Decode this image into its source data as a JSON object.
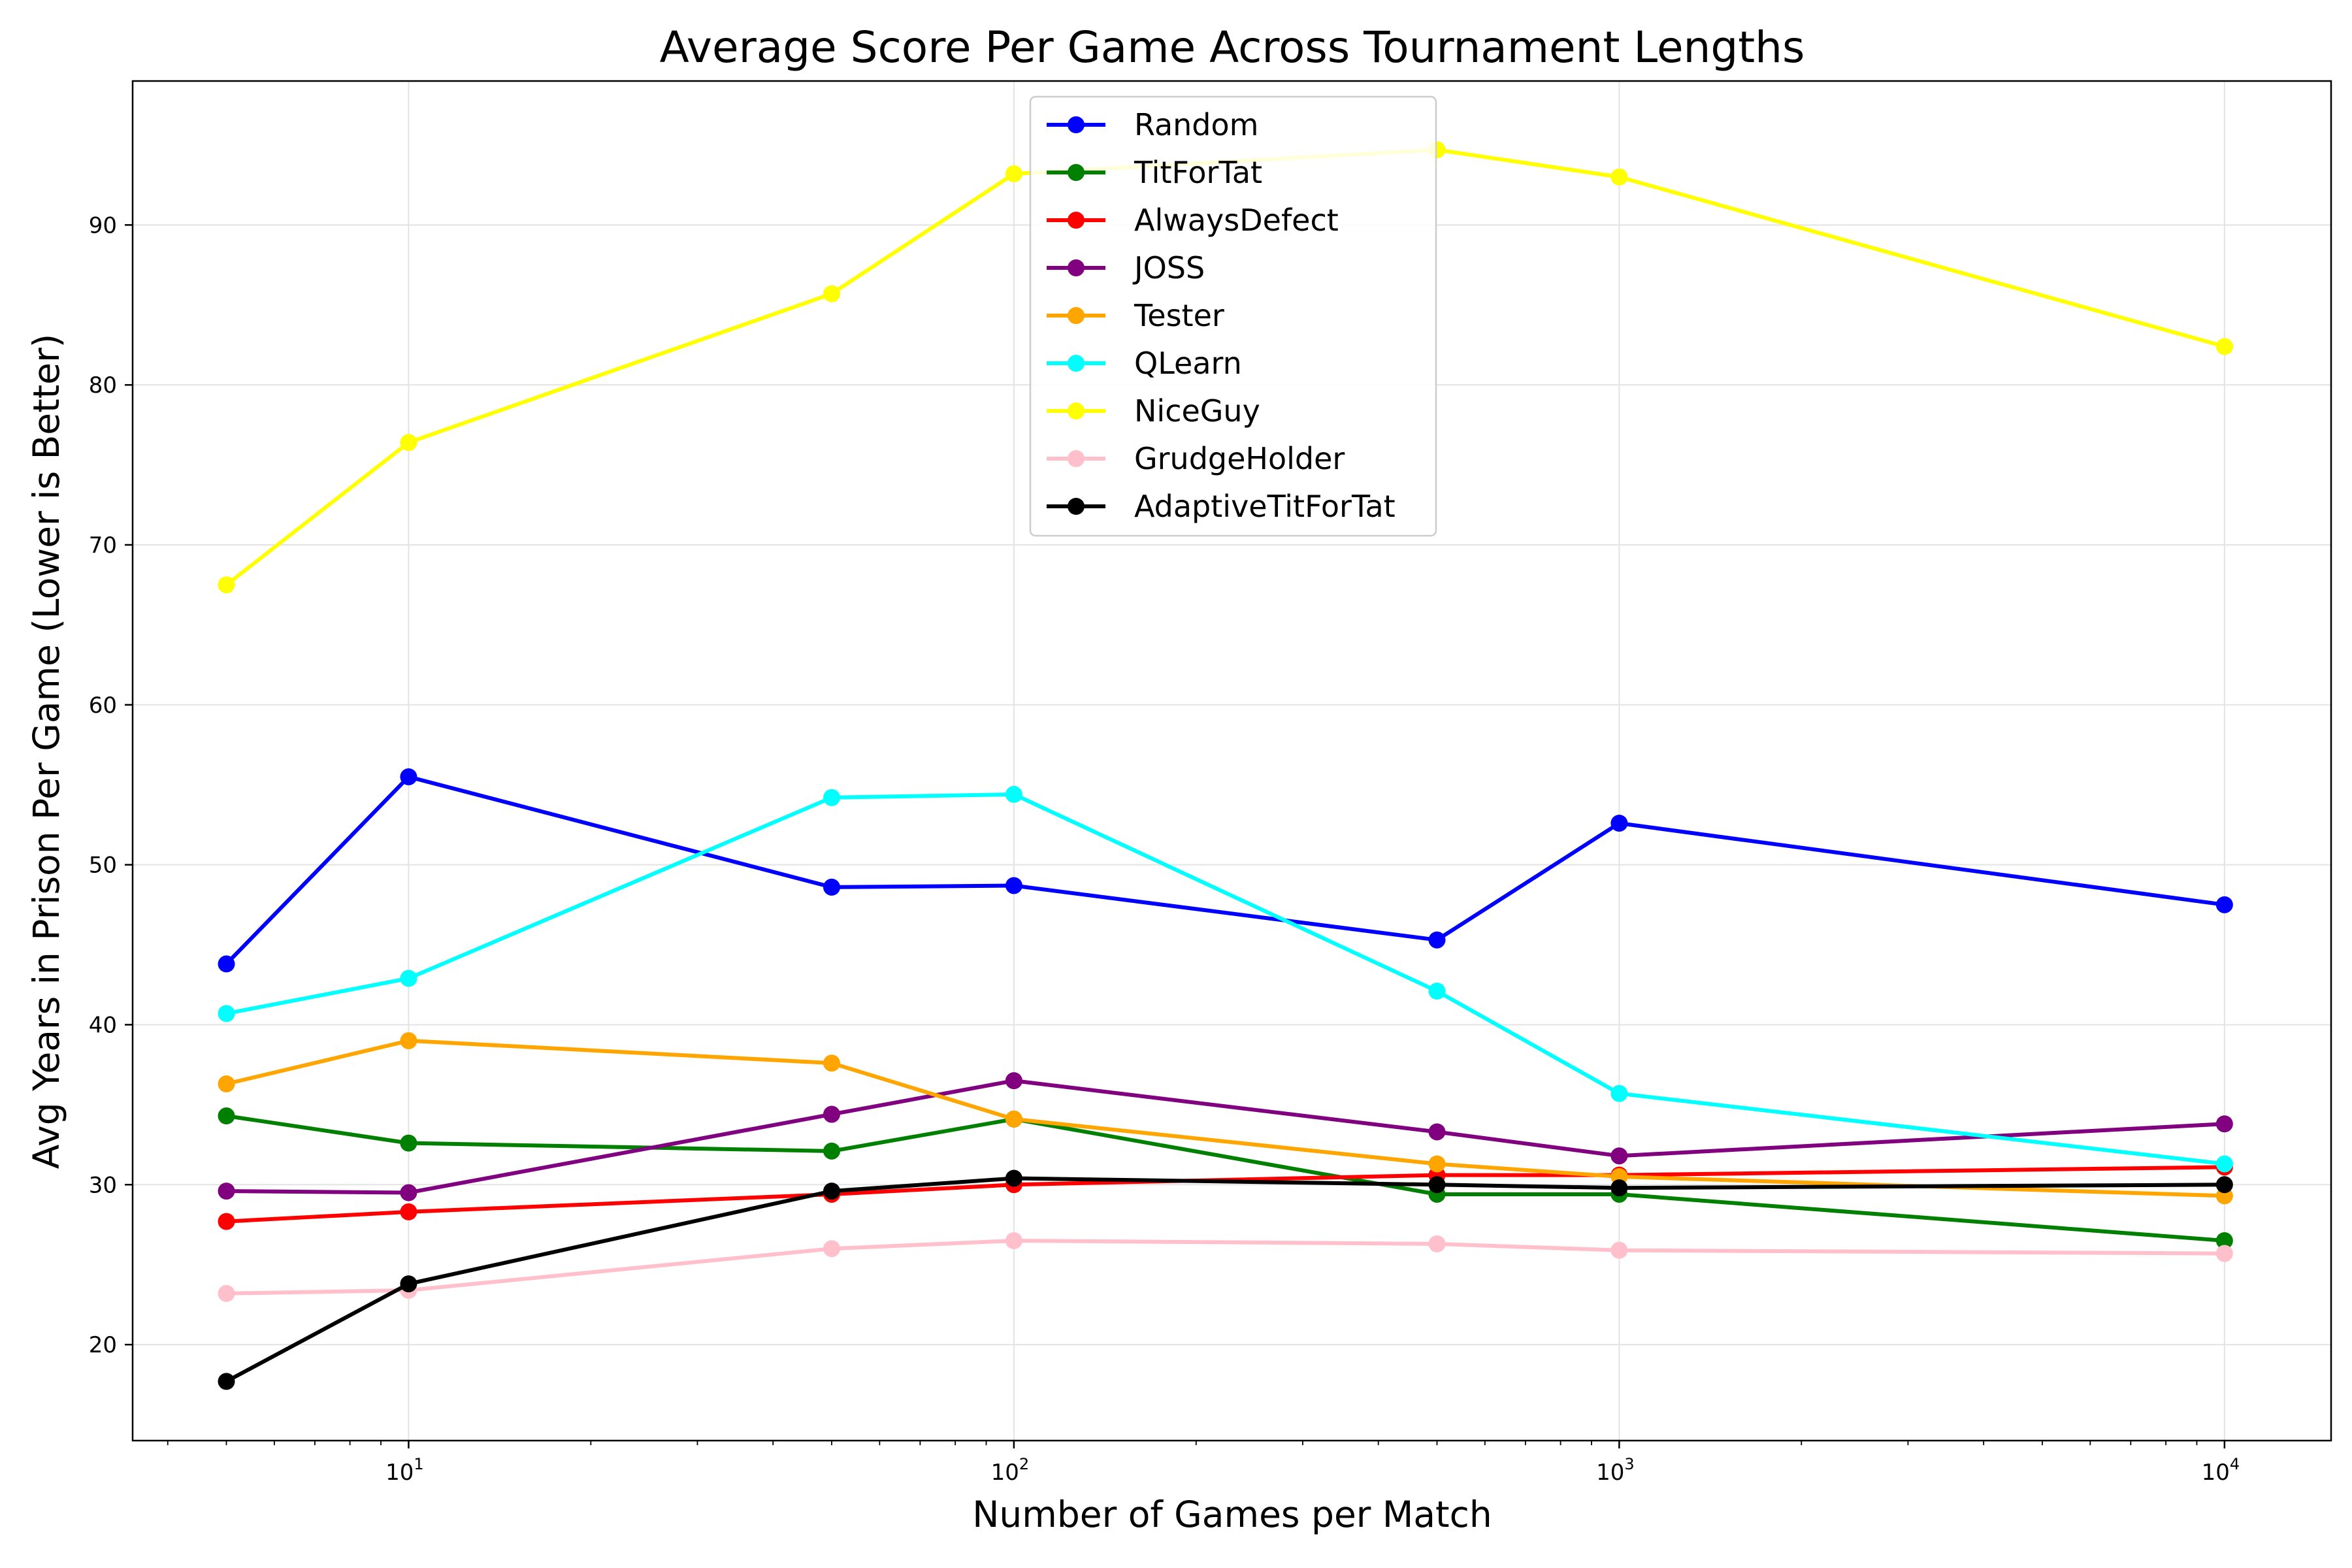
{
  "chart_data": {
    "type": "line",
    "title": "Average Score Per Game Across Tournament Lengths",
    "xlabel": "Number of Games per Match",
    "ylabel": "Avg Years in Prison Per Game (Lower is Better)",
    "x_scale": "log",
    "x": [
      5,
      10,
      50,
      100,
      500,
      1000,
      10000
    ],
    "xlim": [
      3.5,
      15000
    ],
    "ylim": [
      14,
      99
    ],
    "x_ticks": [
      {
        "value": 10,
        "base": "10",
        "exp": "1"
      },
      {
        "value": 100,
        "base": "10",
        "exp": "2"
      },
      {
        "value": 1000,
        "base": "10",
        "exp": "3"
      },
      {
        "value": 10000,
        "base": "10",
        "exp": "4"
      }
    ],
    "y_ticks": [
      {
        "value": 20,
        "label": "20"
      },
      {
        "value": 30,
        "label": "30"
      },
      {
        "value": 40,
        "label": "40"
      },
      {
        "value": 50,
        "label": "50"
      },
      {
        "value": 60,
        "label": "60"
      },
      {
        "value": 70,
        "label": "70"
      },
      {
        "value": 80,
        "label": "80"
      },
      {
        "value": 90,
        "label": "90"
      }
    ],
    "grid": true,
    "legend_position": "top-center",
    "series": [
      {
        "name": "Random",
        "color": "#0000ff",
        "values": [
          43.8,
          55.5,
          48.6,
          48.7,
          45.3,
          52.6,
          47.5
        ]
      },
      {
        "name": "TitForTat",
        "color": "#008000",
        "values": [
          34.3,
          32.6,
          32.1,
          34.1,
          29.4,
          29.4,
          26.5
        ]
      },
      {
        "name": "AlwaysDefect",
        "color": "#ff0000",
        "values": [
          27.7,
          28.3,
          29.4,
          30.0,
          30.6,
          30.6,
          31.1
        ]
      },
      {
        "name": "JOSS",
        "color": "#800080",
        "values": [
          29.6,
          29.5,
          34.4,
          36.5,
          33.3,
          31.8,
          33.8
        ]
      },
      {
        "name": "Tester",
        "color": "#ffa500",
        "values": [
          36.3,
          39.0,
          37.6,
          34.1,
          31.3,
          30.5,
          29.3
        ]
      },
      {
        "name": "QLearn",
        "color": "#00ffff",
        "values": [
          40.7,
          42.9,
          54.2,
          54.4,
          42.1,
          35.7,
          31.3
        ]
      },
      {
        "name": "NiceGuy",
        "color": "#ffff00",
        "values": [
          67.5,
          76.4,
          85.7,
          93.2,
          94.7,
          93.0,
          82.4
        ]
      },
      {
        "name": "GrudgeHolder",
        "color": "#ffc0cb",
        "values": [
          23.2,
          23.4,
          26.0,
          26.5,
          26.3,
          25.9,
          25.7
        ]
      },
      {
        "name": "AdaptiveTitForTat",
        "color": "#000000",
        "values": [
          17.7,
          23.8,
          29.6,
          30.4,
          30.0,
          29.8,
          30.0
        ]
      }
    ]
  }
}
